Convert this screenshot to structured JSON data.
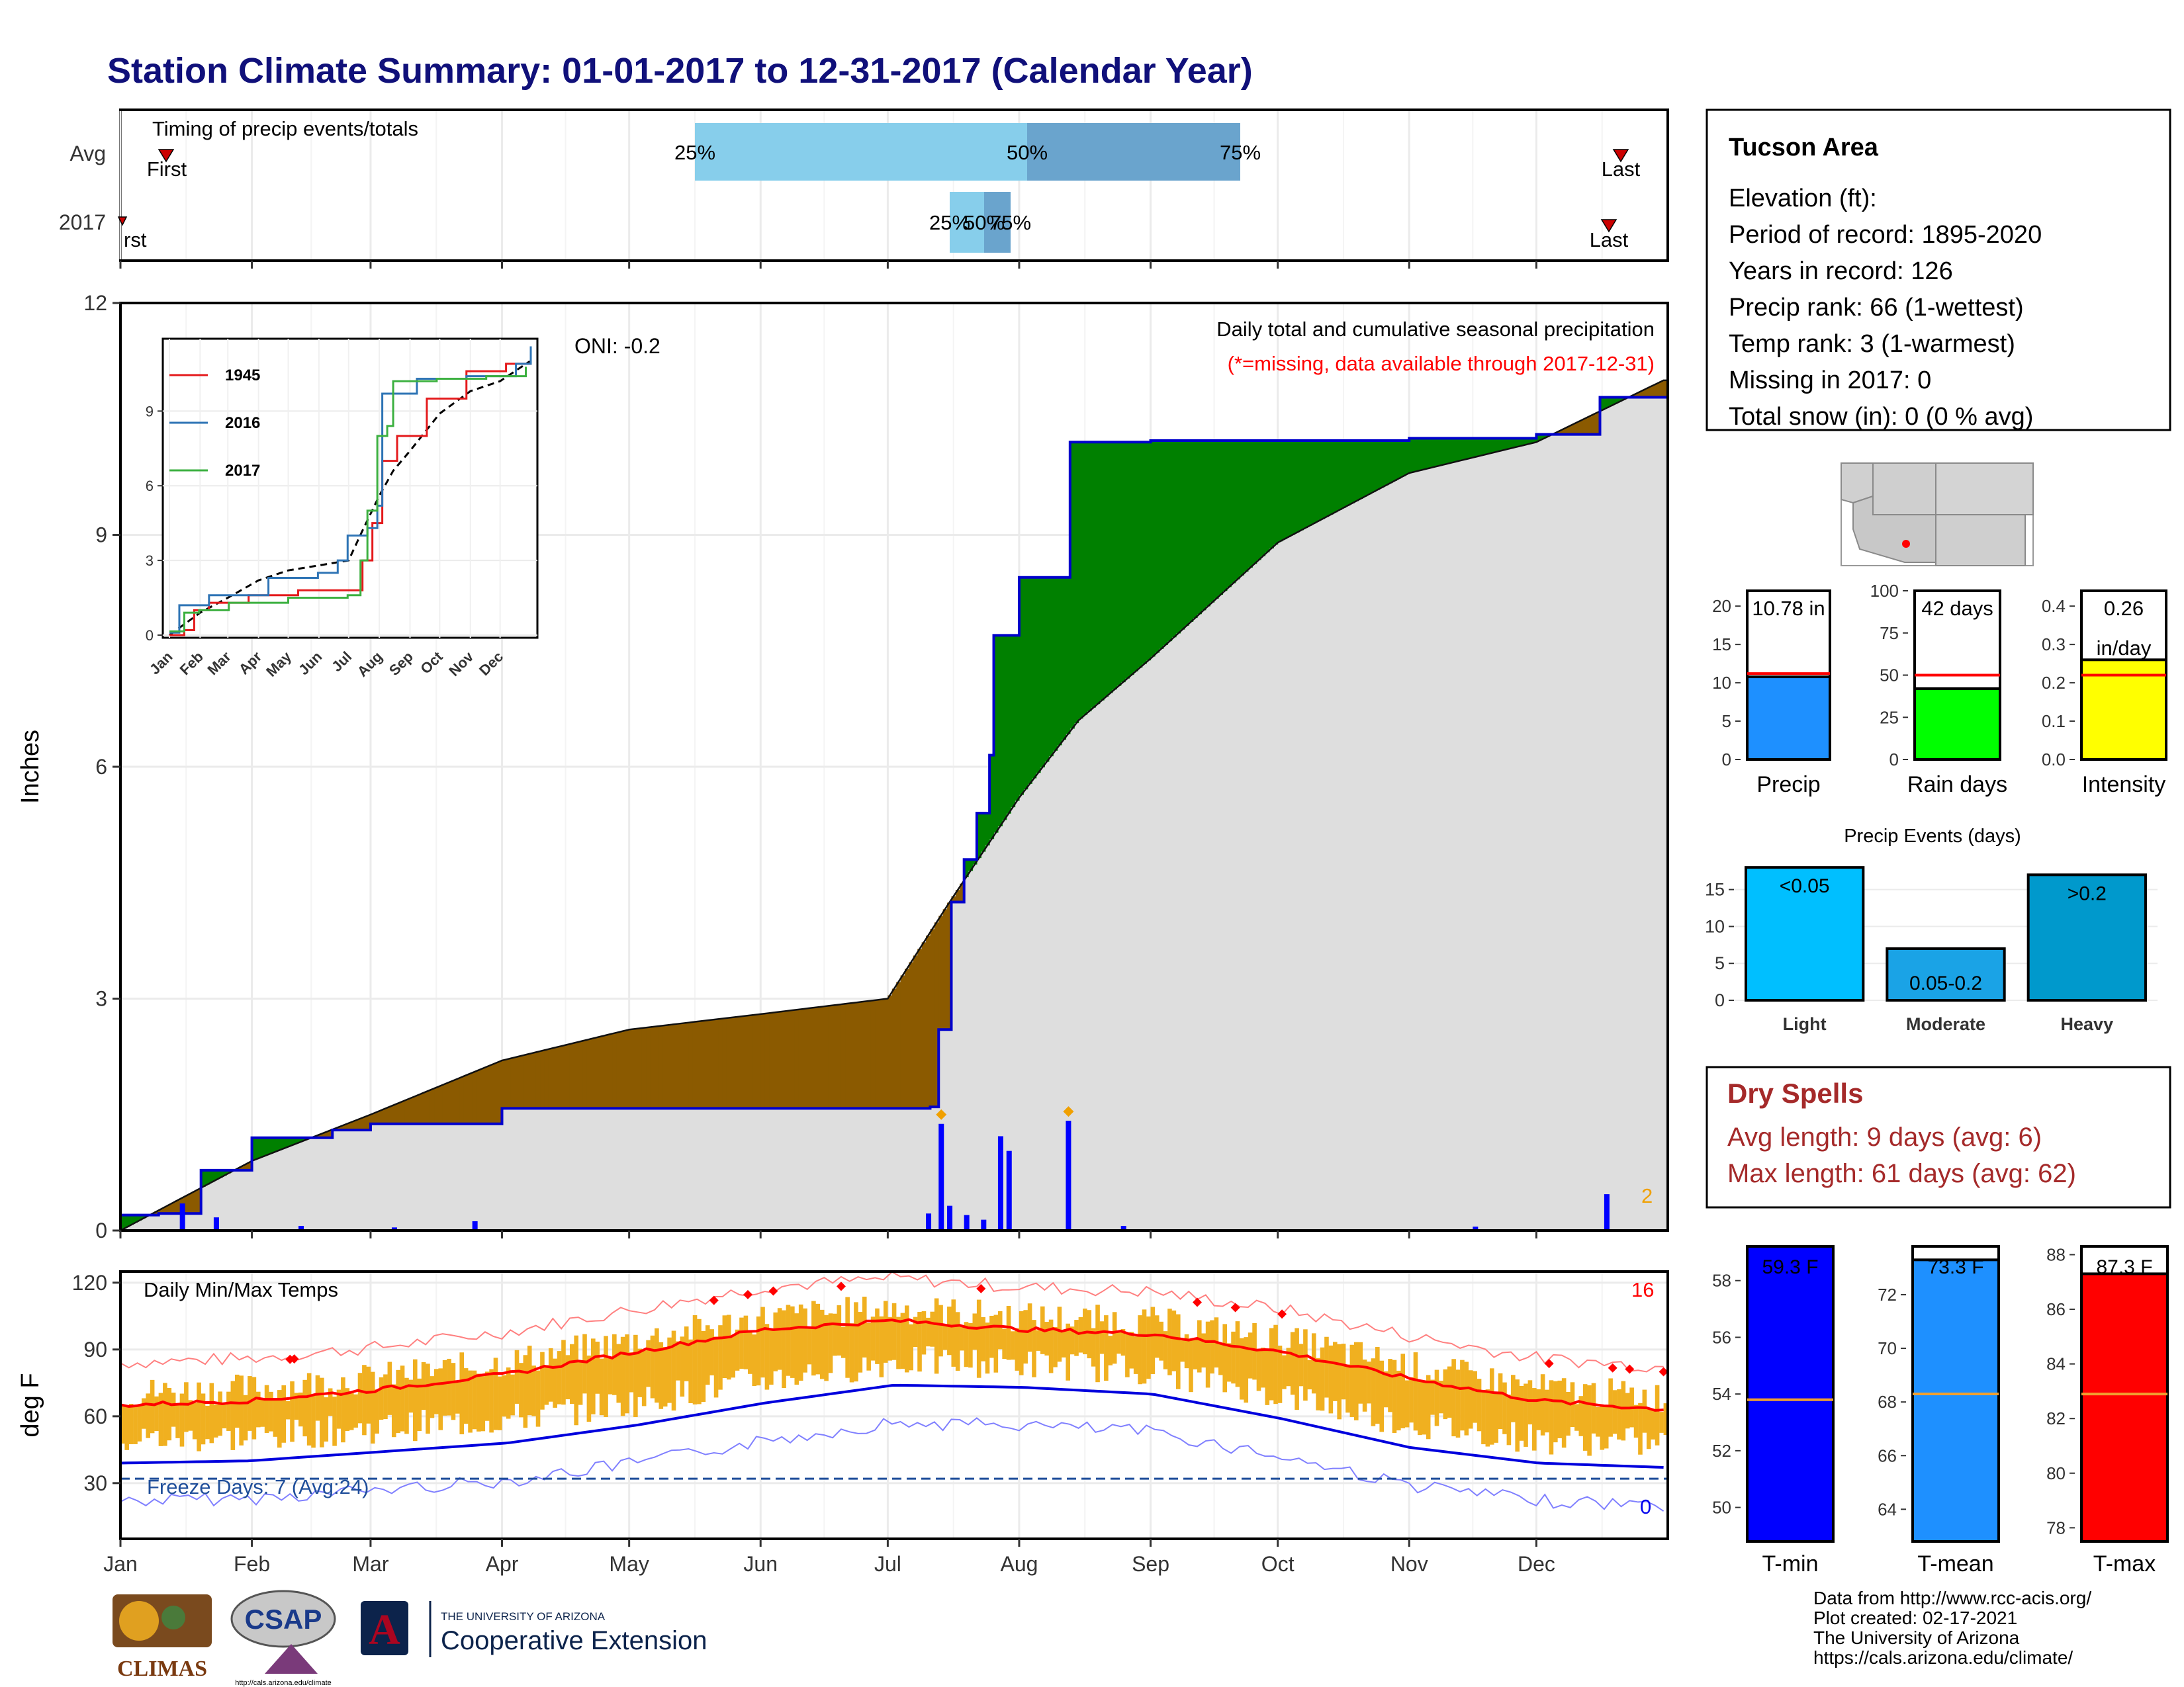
{
  "page": {
    "title": "Station Climate Summary: 01-01-2017 to 12-31-2017 (Calendar Year)",
    "x_months": [
      "Jan",
      "Feb",
      "Mar",
      "Apr",
      "May",
      "Jun",
      "Jul",
      "Aug",
      "Sep",
      "Oct",
      "Nov",
      "Dec"
    ]
  },
  "timing": {
    "label": "Timing of precip events/totals",
    "rows": [
      "Avg",
      "2017"
    ],
    "first_label": "First",
    "first_label_2017": "rst",
    "last_label": "Last",
    "avg_pct_labels": [
      "25%",
      "50%",
      "75%"
    ],
    "y2017_pct_labels": [
      "25%",
      "50%",
      "75%"
    ]
  },
  "station": {
    "name": "Tucson Area",
    "lines": [
      "Elevation (ft):",
      "Period of record: 1895-2020",
      "Years in record: 126",
      "Precip rank: 66 (1-wettest)",
      "Temp rank: 3 (1-warmest)",
      "Missing in 2017: 0",
      "Total snow (in): 0 (0 % avg)"
    ]
  },
  "precip_panel": {
    "ylabel": "Inches",
    "title": "Daily total and cumulative seasonal precipitation",
    "subtitle": "(*=missing, data available through 2017-12-31)",
    "oni": "ONI: -0.2",
    "count_label": "2",
    "yticks": [
      "0",
      "3",
      "6",
      "9",
      "12"
    ]
  },
  "inset": {
    "legend": [
      "1945",
      "2016",
      "2017"
    ],
    "yticks": [
      "0",
      "3",
      "6",
      "9"
    ],
    "xticks": [
      "Jan",
      "Feb",
      "Mar",
      "Apr",
      "May",
      "Jun",
      "Jul",
      "Aug",
      "Sep",
      "Oct",
      "Nov",
      "Dec"
    ]
  },
  "mini_bars": {
    "precip": {
      "label": "Precip",
      "value_label": "10.78 in",
      "yticks": [
        "0",
        "5",
        "10",
        "15",
        "20"
      ]
    },
    "rain_days": {
      "label": "Rain days",
      "value_label": "42 days",
      "yticks": [
        "0",
        "25",
        "50",
        "75",
        "100"
      ]
    },
    "intensity": {
      "label": "Intensity",
      "value_label": "0.26",
      "value_unit": "in/day",
      "yticks": [
        "0.0",
        "0.1",
        "0.2",
        "0.3",
        "0.4"
      ]
    }
  },
  "events": {
    "title": "Precip Events (days)",
    "categories": [
      "Light",
      "Moderate",
      "Heavy"
    ],
    "bar_labels": [
      "<0.05",
      "0.05-0.2",
      ">0.2"
    ],
    "yticks": [
      "0",
      "5",
      "10",
      "15"
    ]
  },
  "dry_spells": {
    "title": "Dry Spells",
    "lines": [
      "Avg length: 9 days (avg: 6)",
      "Max length: 61 days (avg: 62)"
    ]
  },
  "temp_panel": {
    "ylabel": "deg F",
    "title": "Daily Min/Max Temps",
    "hot_count": "16",
    "cold_count": "0",
    "freeze_label": "Freeze Days: 7 (Avg:24)",
    "yticks": [
      "30",
      "60",
      "90",
      "120"
    ]
  },
  "temp_bars": {
    "tmin": {
      "label": "T-min",
      "value_label": "59.3 F",
      "yticks": [
        "50",
        "52",
        "54",
        "56",
        "58"
      ]
    },
    "tmean": {
      "label": "T-mean",
      "value_label": "73.3 F",
      "yticks": [
        "64",
        "66",
        "68",
        "70",
        "72"
      ]
    },
    "tmax": {
      "label": "T-max",
      "value_label": "87.3 F",
      "yticks": [
        "78",
        "80",
        "82",
        "84",
        "86",
        "88"
      ]
    }
  },
  "footer": {
    "lines": [
      "Data from http://www.rcc-acis.org/",
      "Plot created: 02-17-2021",
      "The University of Arizona",
      "https://cals.arizona.edu/climate/"
    ],
    "logo_climas": "CLIMAS",
    "logo_csap": "CSAP",
    "logo_csap_url": "http://cals.arizona.edu/climate",
    "ua_small": "THE UNIVERSITY OF ARIZONA",
    "ua_big": "Cooperative Extension"
  },
  "colors": {
    "title": "#10107a",
    "green": "#008000",
    "brown": "#8b5a00",
    "gray_fill": "#dedede",
    "blue": "#0000ee",
    "orange": "#f0b020",
    "red": "#ff0000",
    "light_blue": "#87ceeb",
    "mid_blue": "#6aa4cd",
    "dry_red": "#a52a2a"
  },
  "chart_data": [
    {
      "type": "area",
      "title": "Daily total and cumulative seasonal precipitation",
      "xlabel": "",
      "ylabel": "Inches",
      "ylim": [
        0,
        12
      ],
      "series": [
        {
          "name": "2017",
          "x": [
            "2017-01-01",
            "2017-01-10",
            "2017-01-20",
            "2017-02-01",
            "2017-02-20",
            "2017-03-01",
            "2017-04-01",
            "2017-07-11",
            "2017-07-13",
            "2017-07-16",
            "2017-07-19",
            "2017-07-22",
            "2017-07-25",
            "2017-07-26",
            "2017-08-01",
            "2017-08-12",
            "2017-08-13",
            "2017-09-01",
            "2017-10-01",
            "2017-11-01",
            "2017-12-01",
            "2017-12-16",
            "2017-12-31"
          ],
          "values": [
            0.2,
            0.22,
            0.78,
            1.2,
            1.3,
            1.38,
            1.58,
            1.6,
            2.6,
            4.25,
            4.8,
            5.4,
            6.15,
            7.7,
            8.45,
            8.45,
            10.2,
            10.22,
            10.22,
            10.25,
            10.3,
            10.78,
            10.78
          ]
        },
        {
          "name": "Avg",
          "x": [
            "2017-01-01",
            "2017-02-01",
            "2017-03-01",
            "2017-04-01",
            "2017-05-01",
            "2017-06-01",
            "2017-07-01",
            "2017-07-15",
            "2017-08-01",
            "2017-08-15",
            "2017-09-01",
            "2017-10-01",
            "2017-11-01",
            "2017-12-01",
            "2017-12-31"
          ],
          "values": [
            0,
            0.9,
            1.5,
            2.2,
            2.6,
            2.8,
            3.0,
            4.2,
            5.6,
            6.6,
            7.4,
            8.9,
            9.8,
            10.2,
            11.0
          ]
        }
      ],
      "daily_precip": {
        "x": [
          "2017-01-15",
          "2017-01-23",
          "2017-02-12",
          "2017-03-06",
          "2017-03-25",
          "2017-07-10",
          "2017-07-13",
          "2017-07-15",
          "2017-07-19",
          "2017-07-23",
          "2017-07-27",
          "2017-07-29",
          "2017-08-12",
          "2017-08-25",
          "2017-11-16",
          "2017-12-17"
        ],
        "values": [
          0.35,
          0.17,
          0.06,
          0.04,
          0.12,
          0.22,
          1.38,
          0.32,
          0.2,
          0.14,
          1.22,
          1.03,
          1.42,
          0.06,
          0.05,
          0.47
        ]
      }
    },
    {
      "type": "bar",
      "title": "Precip Events (days)",
      "categories": [
        "Light",
        "Moderate",
        "Heavy"
      ],
      "values": [
        18,
        7,
        17
      ],
      "ylim": [
        0,
        19
      ]
    },
    {
      "type": "bar",
      "categories": [
        "Precip",
        "Rain days",
        "Intensity"
      ],
      "values": [
        10.78,
        42,
        0.26
      ],
      "averages": [
        11.2,
        50,
        0.22
      ]
    },
    {
      "type": "bar",
      "categories": [
        "T-min",
        "T-mean",
        "T-max"
      ],
      "values": [
        59.3,
        73.3,
        87.3
      ],
      "averages": [
        53.8,
        68.3,
        82.9
      ]
    },
    {
      "type": "line",
      "title": "Daily Min/Max Temps",
      "ylabel": "deg F",
      "ylim": [
        5,
        125
      ],
      "series": [
        {
          "name": "avg max",
          "x": [
            "Jan",
            "Feb",
            "Mar",
            "Apr",
            "May",
            "Jun",
            "Jul",
            "Aug",
            "Sep",
            "Oct",
            "Nov",
            "Dec",
            "Dec end"
          ],
          "values": [
            65,
            67,
            72,
            79,
            89,
            99,
            103,
            99,
            97,
            89,
            77,
            67,
            63
          ]
        },
        {
          "name": "avg min",
          "x": [
            "Jan",
            "Feb",
            "Mar",
            "Apr",
            "May",
            "Jun",
            "Jul",
            "Aug",
            "Sep",
            "Oct",
            "Nov",
            "Dec",
            "Dec end"
          ],
          "values": [
            39,
            40,
            44,
            48,
            56,
            66,
            74,
            73,
            70,
            59,
            46,
            39,
            37
          ]
        }
      ],
      "freeze_line": 32
    }
  ]
}
